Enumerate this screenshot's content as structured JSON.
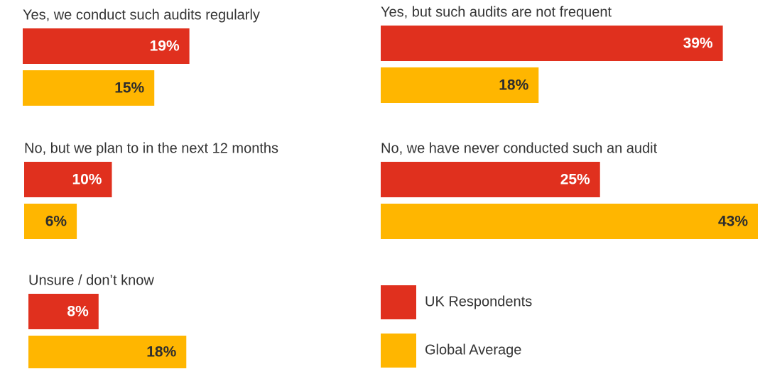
{
  "chart_data": {
    "type": "bar",
    "orientation": "horizontal",
    "categories": [
      "Yes, we conduct such audits regularly",
      "Yes, but such audits are not frequent",
      "No, but we plan to in the next 12 months",
      "No, we have never conducted such an audit",
      "Unsure / don’t know"
    ],
    "series": [
      {
        "name": "UK Respondents",
        "color": "#e0301e",
        "values": [
          19,
          39,
          10,
          25,
          8
        ],
        "value_labels": [
          "19%",
          "39%",
          "10%",
          "25%",
          "8%"
        ]
      },
      {
        "name": "Global Average",
        "color": "#ffb600",
        "values": [
          15,
          18,
          6,
          43,
          18
        ],
        "value_labels": [
          "15%",
          "18%",
          "6%",
          "43%",
          "18%"
        ]
      }
    ],
    "legend": "bottom-right"
  }
}
